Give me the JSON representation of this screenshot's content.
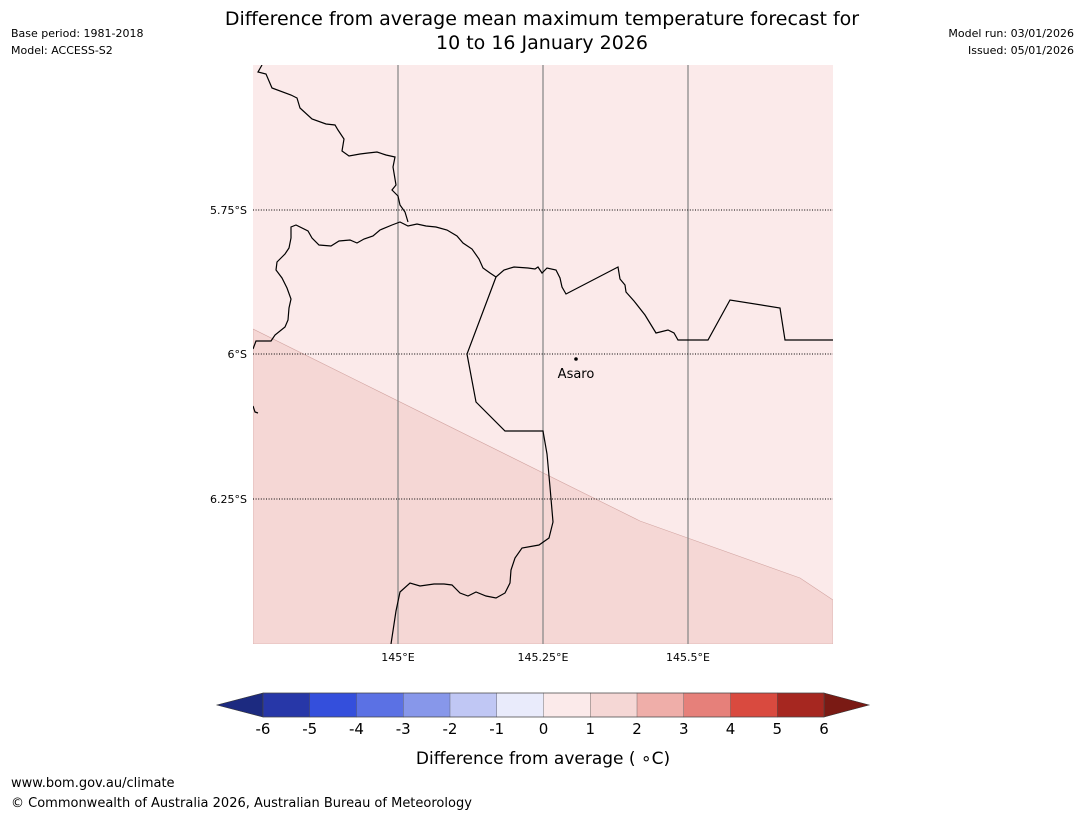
{
  "header": {
    "title_line1": "Difference from average mean maximum temperature forecast for",
    "title_line2": "10 to 16 January 2026",
    "base_period": "Base period: 1981-2018",
    "model": "Model: ACCESS-S2",
    "model_run": "Model run: 03/01/2026",
    "issued": "Issued: 05/01/2026"
  },
  "map": {
    "lat_labels": [
      "5.75°S",
      "6°S",
      "6.25°S"
    ],
    "lon_labels": [
      "145°E",
      "145.25°E",
      "145.5°E"
    ],
    "place": {
      "name": "Asaro"
    },
    "anomaly_zones": [
      {
        "range": "0 to 1 °C",
        "color": "#fbeaea"
      },
      {
        "range": "1 to 2 °C",
        "color": "#f5d7d5"
      }
    ]
  },
  "colorbar": {
    "label": "Difference from average ( ∘C)",
    "ticks": [
      "-6",
      "-5",
      "-4",
      "-3",
      "-2",
      "-1",
      "0",
      "1",
      "2",
      "3",
      "4",
      "5",
      "6"
    ],
    "under_color": "#1c2a80",
    "over_color": "#7a1a14",
    "colors": [
      "#2737a8",
      "#344fdc",
      "#5b71e4",
      "#8797ea",
      "#c0c7f4",
      "#e9ebfb",
      "#fbeaea",
      "#f5d7d5",
      "#efaea9",
      "#e6807a",
      "#d94a3f",
      "#a62720"
    ]
  },
  "footer": {
    "website": "www.bom.gov.au/climate",
    "copyright": "© Commonwealth of Australia 2026, Australian Bureau of Meteorology"
  }
}
